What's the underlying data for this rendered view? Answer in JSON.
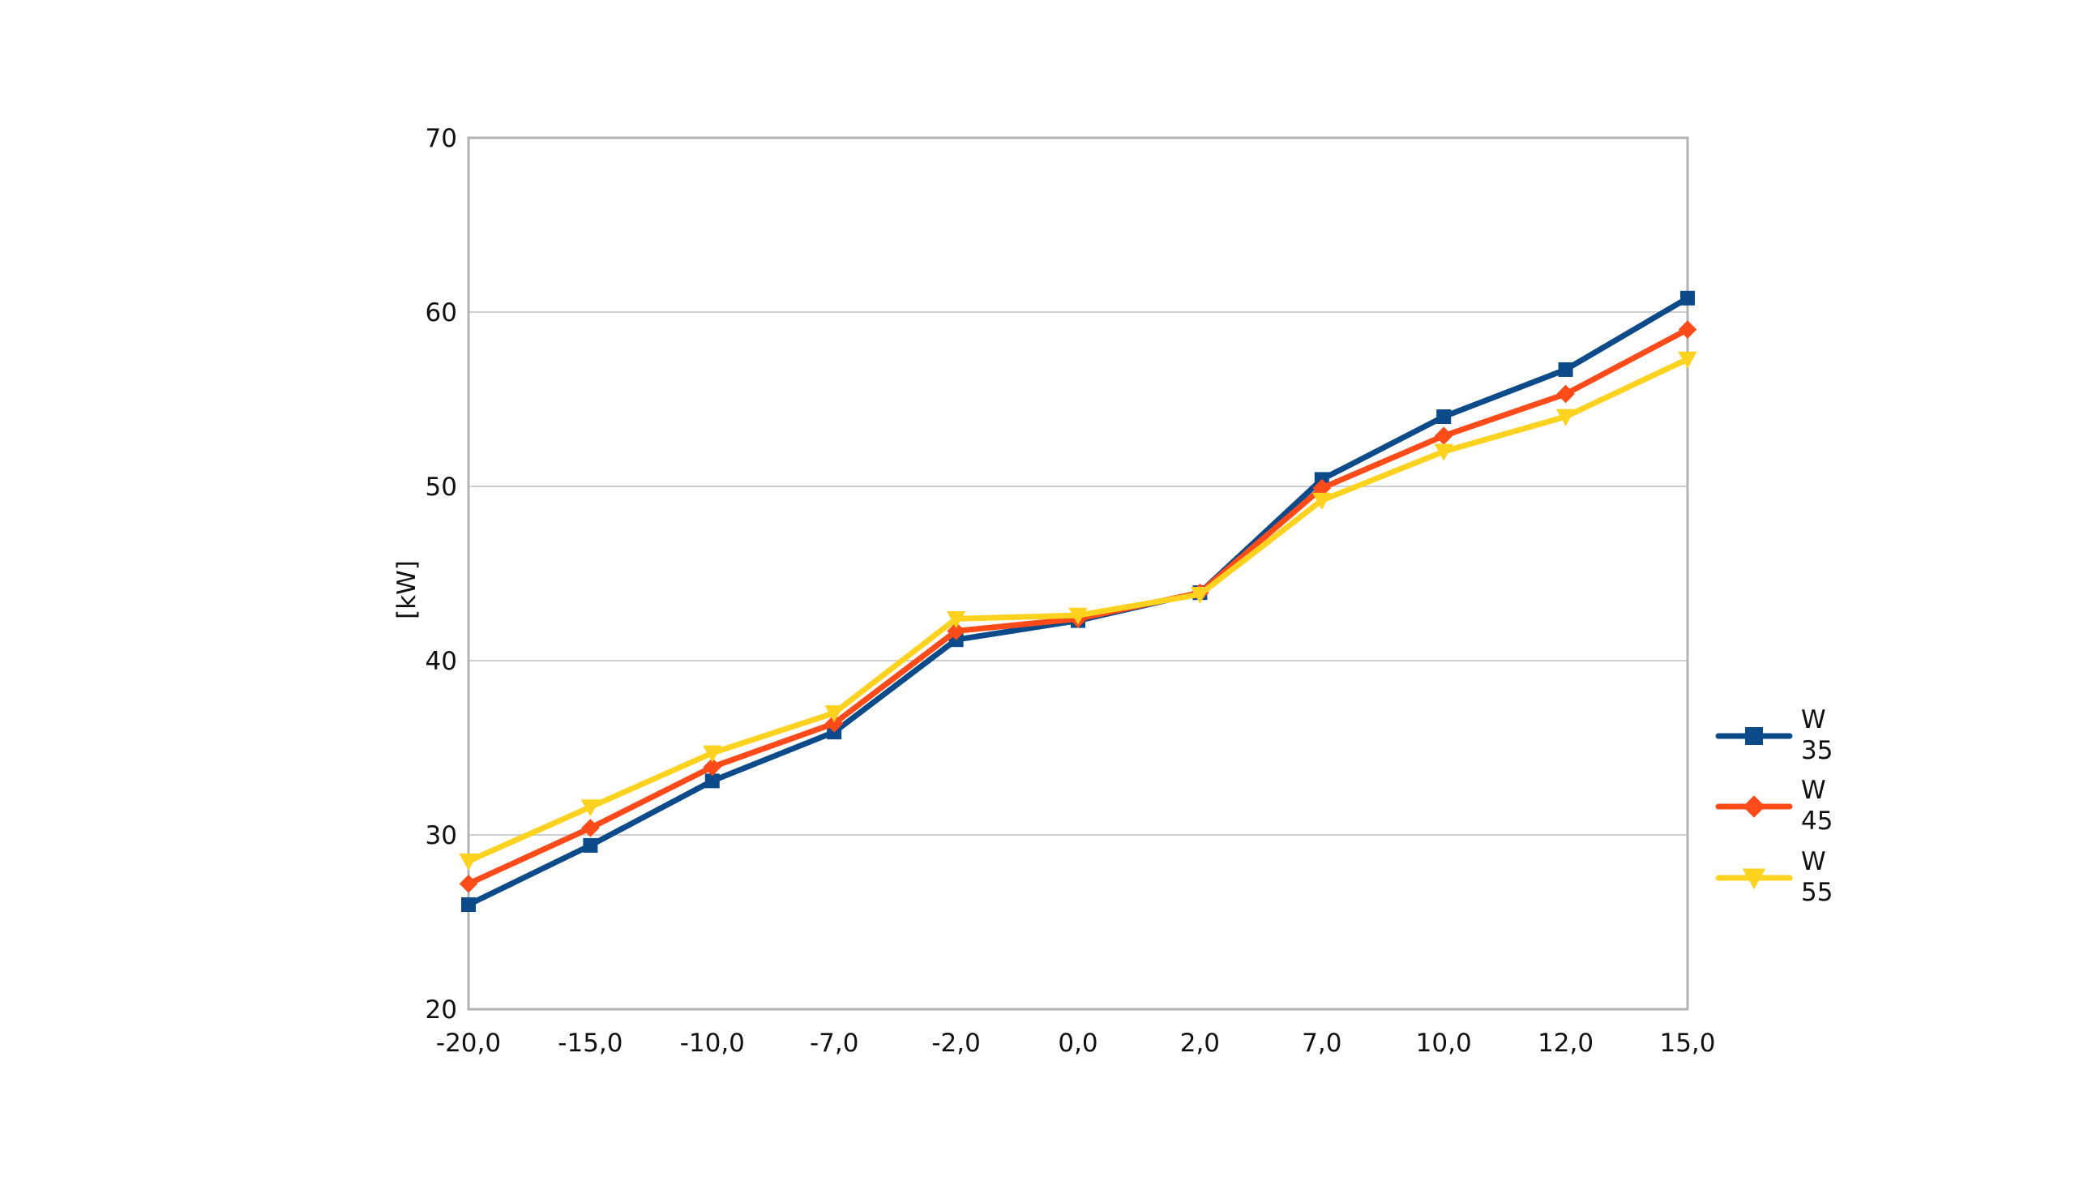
{
  "chart_data": {
    "type": "line",
    "title": "",
    "xlabel": "",
    "ylabel": "[kW]",
    "categories": [
      "-20,0",
      "-15,0",
      "-10,0",
      "-7,0",
      "-2,0",
      "0,0",
      "2,0",
      "7,0",
      "10,0",
      "12,0",
      "15,0"
    ],
    "ylim": [
      20,
      70
    ],
    "yticks": [
      "20",
      "30",
      "40",
      "50",
      "60",
      "70"
    ],
    "grid": true,
    "legend_position": "right",
    "series": [
      {
        "name_lines": [
          "W",
          "35"
        ],
        "color": "#0d4a8a",
        "marker": "square",
        "values": [
          26.0,
          29.4,
          33.1,
          35.9,
          41.2,
          42.3,
          43.9,
          50.4,
          54.0,
          56.7,
          60.8
        ]
      },
      {
        "name_lines": [
          "W",
          "45"
        ],
        "color": "#ff4a1a",
        "marker": "diamond",
        "values": [
          27.2,
          30.4,
          33.9,
          36.4,
          41.7,
          42.4,
          43.9,
          49.9,
          52.9,
          55.3,
          59.0
        ]
      },
      {
        "name_lines": [
          "W",
          "55"
        ],
        "color": "#ffd21f",
        "marker": "triangle-down",
        "values": [
          28.5,
          31.6,
          34.7,
          37.0,
          42.4,
          42.6,
          43.8,
          49.2,
          52.0,
          54.0,
          57.3
        ]
      }
    ]
  }
}
